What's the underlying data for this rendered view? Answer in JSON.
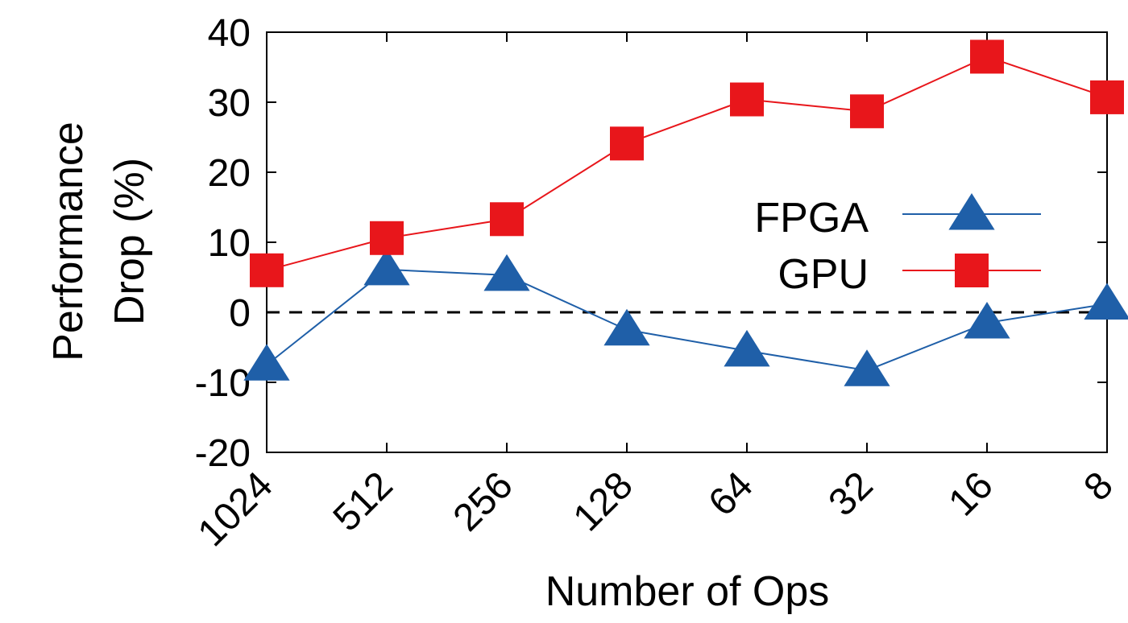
{
  "chart_data": {
    "type": "line",
    "xlabel": "Number of Ops",
    "ylabel": "Performance Drop (%)",
    "ylabel_lines": [
      "Performance",
      "Drop (%)"
    ],
    "categories": [
      "1024",
      "512",
      "256",
      "128",
      "64",
      "32",
      "16",
      "8"
    ],
    "ylim": [
      -20,
      40
    ],
    "yticks": [
      -20,
      -10,
      0,
      10,
      20,
      30,
      40
    ],
    "grid": false,
    "legend_position": "right-center",
    "reference_line": {
      "y": 0,
      "style": "dashed",
      "color": "#000000"
    },
    "series": [
      {
        "name": "FPGA",
        "values": [
          -7.5,
          6.1,
          5.3,
          -2.5,
          -5.5,
          -8.3,
          -1.5,
          1.2
        ],
        "color": "#1f5fa8",
        "marker": "triangle"
      },
      {
        "name": "GPU",
        "values": [
          6.0,
          10.6,
          13.3,
          24.1,
          30.4,
          28.7,
          36.5,
          30.7
        ],
        "color": "#e8161b",
        "marker": "square"
      }
    ]
  }
}
